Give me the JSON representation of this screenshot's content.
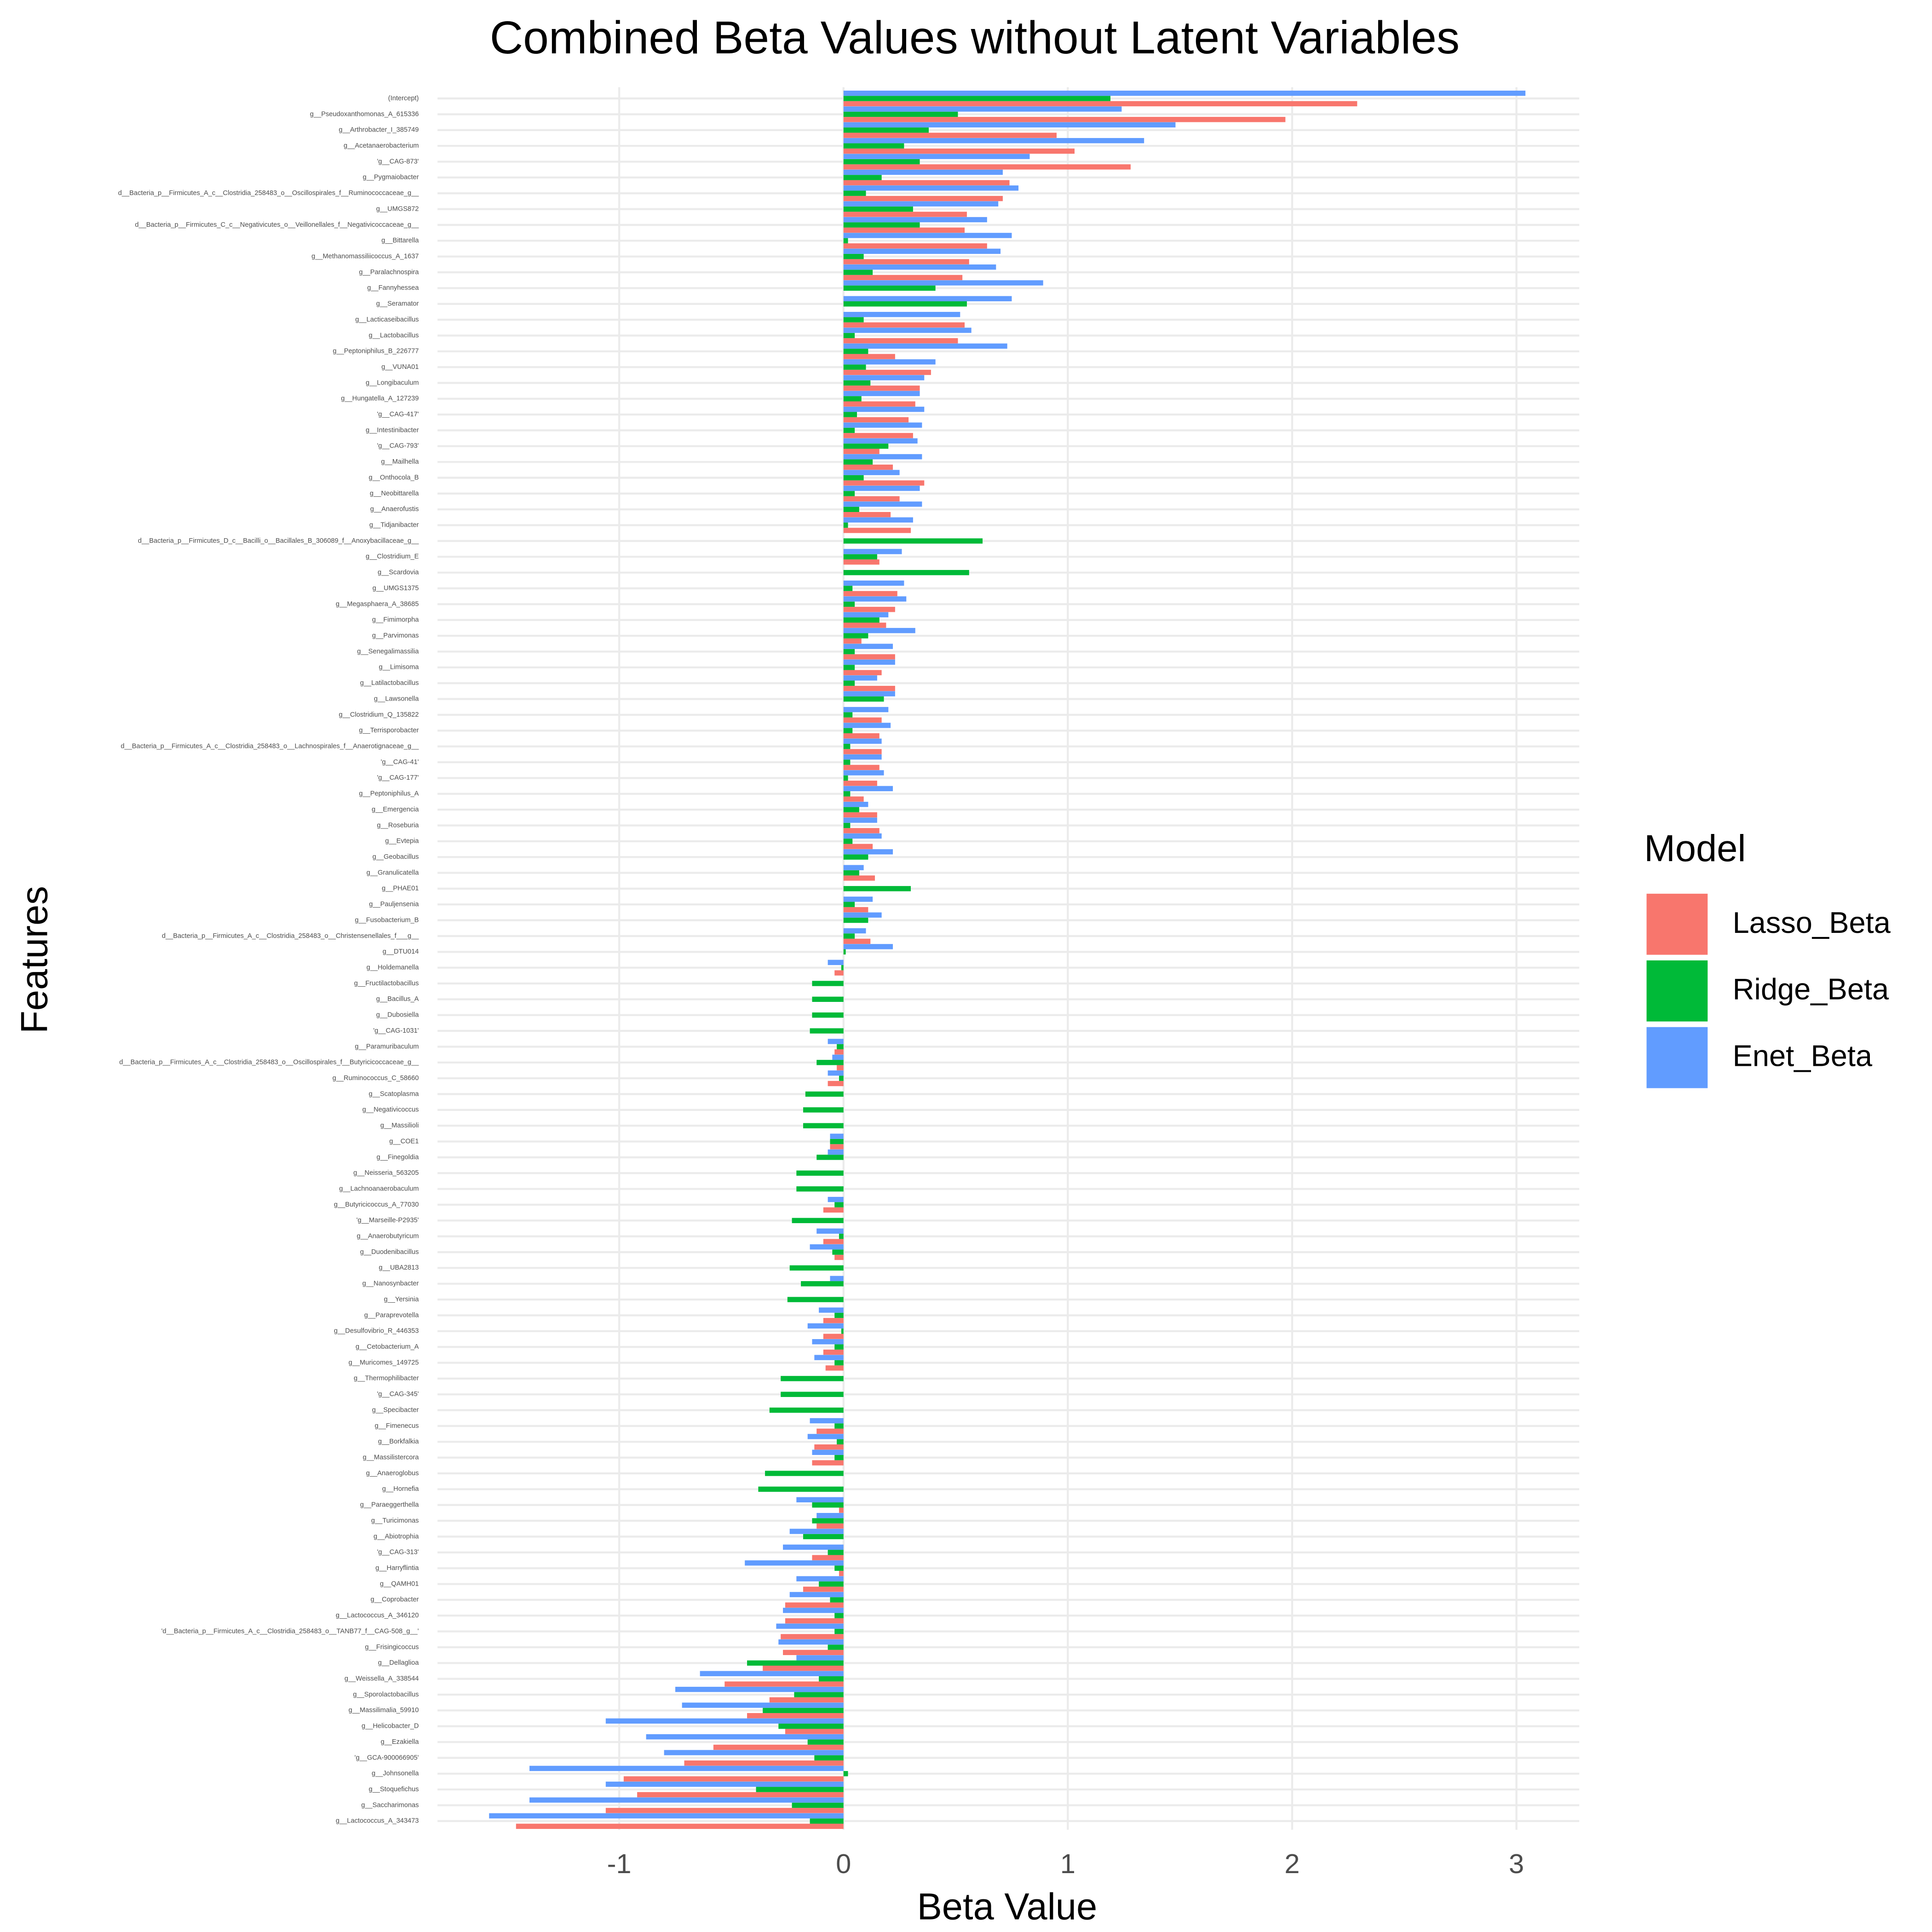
{
  "chart_data": {
    "type": "bar",
    "orientation": "horizontal",
    "title": "Combined Beta Values without Latent Variables",
    "x_label": "Beta Value",
    "y_label": "Features",
    "legend_title": "Model",
    "legend_position": "right",
    "grid": true,
    "xlim": [
      -1.81,
      3.28
    ],
    "xticks": [
      -1,
      0,
      1,
      2,
      3
    ],
    "categories": [
      "(Intercept)",
      "g__Pseudoxanthomonas_A_615336",
      "g__Arthrobacter_I_385749",
      "g__Acetanaerobacterium",
      "'g__CAG-873'",
      "g__Pygmaiobacter",
      "d__Bacteria_p__Firmicutes_A_c__Clostridia_258483_o__Oscillospirales_f__Ruminococcaceae_g__",
      "g__UMGS872",
      "d__Bacteria_p__Firmicutes_C_c__Negativicutes_o__Veillonellales_f__Negativicoccaceae_g__",
      "g__Bittarella",
      "g__Methanomassiliicoccus_A_1637",
      "g__Paralachnospira",
      "g__Fannyhessea",
      "g__Seramator",
      "g__Lacticaseibacillus",
      "g__Lactobacillus",
      "g__Peptoniphilus_B_226777",
      "g__VUNA01",
      "g__Longibaculum",
      "g__Hungatella_A_127239",
      "'g__CAG-417'",
      "g__Intestinibacter",
      "'g__CAG-793'",
      "g__Mailhella",
      "g__Onthocola_B",
      "g__Neobittarella",
      "g__Anaerofustis",
      "g__Tidjanibacter",
      "d__Bacteria_p__Firmicutes_D_c__Bacilli_o__Bacillales_B_306089_f__Anoxybacillaceae_g__",
      "g__Clostridium_E",
      "g__Scardovia",
      "g__UMGS1375",
      "g__Megasphaera_A_38685",
      "g__Fimimorpha",
      "g__Parvimonas",
      "g__Senegalimassilia",
      "g__Limisoma",
      "g__Latilactobacillus",
      "g__Lawsonella",
      "g__Clostridium_Q_135822",
      "g__Terrisporobacter",
      "d__Bacteria_p__Firmicutes_A_c__Clostridia_258483_o__Lachnospirales_f__Anaerotignaceae_g__",
      "'g__CAG-41'",
      "'g__CAG-177'",
      "g__Peptoniphilus_A",
      "g__Emergencia",
      "g__Roseburia",
      "g__Evtepia",
      "g__Geobacillus",
      "g__Granulicatella",
      "g__PHAE01",
      "g__Pauljensenia",
      "g__Fusobacterium_B",
      "d__Bacteria_p__Firmicutes_A_c__Clostridia_258483_o__Christensenellales_f___g__",
      "g__DTU014",
      "g__Holdemanella",
      "g__Fructilactobacillus",
      "g__Bacillus_A",
      "g__Dubosiella",
      "'g__CAG-1031'",
      "g__Paramuribaculum",
      "d__Bacteria_p__Firmicutes_A_c__Clostridia_258483_o__Oscillospirales_f__Butyricicoccaceae_g__",
      "g__Ruminococcus_C_58660",
      "g__Scatoplasma",
      "g__Negativicoccus",
      "g__Massilioli",
      "g__COE1",
      "g__Finegoldia",
      "g__Neisseria_563205",
      "g__Lachnoanaerobaculum",
      "g__Butyricicoccus_A_77030",
      "'g__Marseille-P2935'",
      "g__Anaerobutyricum",
      "g__Duodenibacillus",
      "g__UBA2813",
      "g__Nanosynbacter",
      "g__Yersinia",
      "g__Paraprevotella",
      "g__Desulfovibrio_R_446353",
      "g__Cetobacterium_A",
      "g__Muricomes_149725",
      "g__Thermophilibacter",
      "'g__CAG-345'",
      "g__Specibacter",
      "g__Fimenecus",
      "g__Borkfalkia",
      "g__Massilistercora",
      "g__Anaeroglobus",
      "g__Hornefia",
      "g__Paraeggerthella",
      "g__Turicimonas",
      "g__Abiotrophia",
      "'g__CAG-313'",
      "g__Harryflintia",
      "g__QAMH01",
      "g__Coprobacter",
      "g__Lactococcus_A_346120",
      "'d__Bacteria_p__Firmicutes_A_c__Clostridia_258483_o__TANB77_f__CAG-508_g__'",
      "g__Frisingicoccus",
      "g__Dellaglioa",
      "g__Weissella_A_338544",
      "g__Sporolactobacillus",
      "g__Massilimalia_59910",
      "g__Helicobacter_D",
      "g__Ezakiella",
      "'g__GCA-900066905'",
      "g__Johnsonella",
      "g__Stoquefichus",
      "g__Saccharimonas",
      "g__Lactococcus_A_343473"
    ],
    "series": [
      {
        "name": "Lasso_Beta",
        "color": "#F8766D",
        "values": [
          2.29,
          1.97,
          0.95,
          1.03,
          1.28,
          0.74,
          0.71,
          0.55,
          0.54,
          0.64,
          0.56,
          0.53,
          0,
          0,
          0.54,
          0.51,
          0.23,
          0.39,
          0.34,
          0.32,
          0.29,
          0.31,
          0.16,
          0.22,
          0.36,
          0.25,
          0.21,
          0.3,
          0,
          0.16,
          0,
          0.24,
          0.23,
          0.19,
          0.08,
          0.23,
          0.17,
          0.23,
          0,
          0.17,
          0.16,
          0.17,
          0.16,
          0.15,
          0.09,
          0.15,
          0.16,
          0.13,
          0,
          0.14,
          0,
          0.11,
          0,
          0.12,
          0,
          -0.04,
          0,
          0,
          0,
          0,
          -0.04,
          -0.03,
          -0.07,
          0,
          0,
          0,
          -0.06,
          0,
          0,
          0,
          -0.09,
          0,
          -0.09,
          -0.04,
          0,
          0,
          0,
          -0.09,
          -0.09,
          -0.09,
          -0.08,
          0,
          0,
          0,
          -0.12,
          -0.13,
          -0.14,
          0,
          0,
          -0.02,
          -0.12,
          0,
          -0.14,
          -0.02,
          -0.18,
          -0.26,
          -0.26,
          -0.28,
          -0.27,
          -0.36,
          -0.53,
          -0.33,
          -0.43,
          -0.26,
          -0.58,
          -0.71,
          -0.98,
          -0.92,
          -1.06,
          -1.46
        ]
      },
      {
        "name": "Ridge_Beta",
        "color": "#00BA38",
        "values": [
          1.19,
          0.51,
          0.38,
          0.27,
          0.34,
          0.17,
          0.1,
          0.31,
          0.34,
          0.02,
          0.09,
          0.13,
          0.41,
          0.55,
          0.09,
          0.05,
          0.11,
          0.1,
          0.12,
          0.08,
          0.06,
          0.05,
          0.2,
          0.13,
          0.09,
          0.05,
          0.07,
          0.02,
          0.62,
          0.15,
          0.56,
          0.04,
          0.05,
          0.16,
          0.11,
          0.05,
          0.05,
          0.05,
          0.18,
          0.04,
          0.04,
          0.03,
          0.03,
          0.02,
          0.03,
          0.07,
          0.03,
          0.04,
          0.11,
          0.07,
          0.3,
          0.05,
          0.11,
          0.05,
          0.01,
          -0.01,
          -0.14,
          -0.14,
          -0.14,
          -0.15,
          -0.03,
          -0.12,
          -0.02,
          -0.17,
          -0.18,
          -0.18,
          -0.06,
          -0.12,
          -0.21,
          -0.21,
          -0.04,
          -0.23,
          -0.02,
          -0.05,
          -0.24,
          -0.19,
          -0.25,
          -0.04,
          -0.01,
          -0.04,
          -0.04,
          -0.28,
          -0.28,
          -0.33,
          -0.04,
          -0.03,
          -0.04,
          -0.35,
          -0.38,
          -0.14,
          -0.14,
          -0.18,
          -0.07,
          -0.04,
          -0.11,
          -0.06,
          -0.04,
          -0.04,
          -0.07,
          -0.43,
          -0.11,
          -0.22,
          -0.36,
          -0.29,
          -0.16,
          -0.13,
          0.02,
          -0.39,
          -0.23,
          -0.15
        ]
      },
      {
        "name": "Enet_Beta",
        "color": "#619CFF",
        "values": [
          3.04,
          1.24,
          1.48,
          1.34,
          0.83,
          0.71,
          0.78,
          0.69,
          0.64,
          0.75,
          0.7,
          0.68,
          0.89,
          0.75,
          0.52,
          0.57,
          0.73,
          0.41,
          0.36,
          0.34,
          0.36,
          0.35,
          0.33,
          0.35,
          0.25,
          0.34,
          0.35,
          0.31,
          0,
          0.26,
          0,
          0.27,
          0.28,
          0.2,
          0.32,
          0.22,
          0.23,
          0.15,
          0.23,
          0.2,
          0.21,
          0.17,
          0.17,
          0.18,
          0.22,
          0.11,
          0.15,
          0.17,
          0.22,
          0.09,
          0,
          0.13,
          0.17,
          0.1,
          0.22,
          -0.07,
          0,
          0,
          0,
          0,
          -0.07,
          -0.05,
          -0.07,
          0,
          0,
          0,
          -0.06,
          -0.07,
          0,
          0,
          -0.07,
          0,
          -0.12,
          -0.15,
          0,
          -0.06,
          0,
          -0.11,
          -0.16,
          -0.14,
          -0.13,
          0,
          0,
          0,
          -0.15,
          -0.16,
          -0.14,
          0,
          0,
          -0.21,
          -0.12,
          -0.24,
          -0.27,
          -0.44,
          -0.21,
          -0.24,
          -0.27,
          -0.3,
          -0.29,
          -0.21,
          -0.64,
          -0.75,
          -0.72,
          -1.06,
          -0.88,
          -0.8,
          -1.4,
          -1.06,
          -1.4,
          -1.58
        ]
      }
    ]
  }
}
